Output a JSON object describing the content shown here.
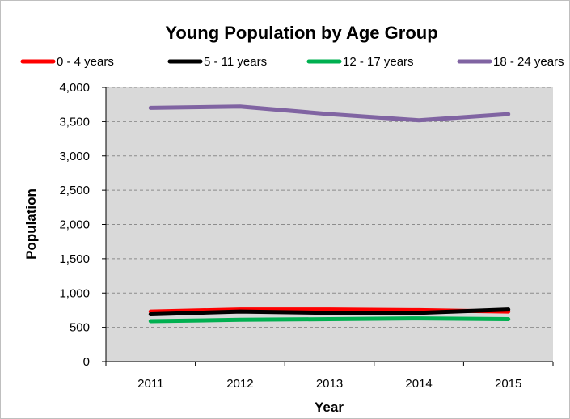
{
  "chart_data": {
    "type": "line",
    "title": "Young Population by Age Group",
    "xlabel": "Year",
    "ylabel": "Population",
    "ylim": [
      0,
      4000
    ],
    "ytick_step": 500,
    "yticks": [
      "0",
      "500",
      "1,000",
      "1,500",
      "2,000",
      "2,500",
      "3,000",
      "3,500",
      "4,000"
    ],
    "categories": [
      "2011",
      "2012",
      "2013",
      "2014",
      "2015"
    ],
    "grid": true,
    "legend_position": "top",
    "series": [
      {
        "name": "0 - 4 years",
        "color": "#ff0000",
        "values": [
          730,
          760,
          760,
          750,
          730
        ]
      },
      {
        "name": "5 - 11 years",
        "color": "#000000",
        "values": [
          690,
          730,
          710,
          710,
          760
        ]
      },
      {
        "name": "12 - 17 years",
        "color": "#00b050",
        "values": [
          590,
          610,
          620,
          630,
          620
        ]
      },
      {
        "name": "18 - 24 years",
        "color": "#8064a2",
        "values": [
          3700,
          3720,
          3610,
          3520,
          3610
        ]
      }
    ],
    "colors": {
      "plot_background": "#d9d9d9",
      "frame": "#bfbfbf"
    }
  }
}
